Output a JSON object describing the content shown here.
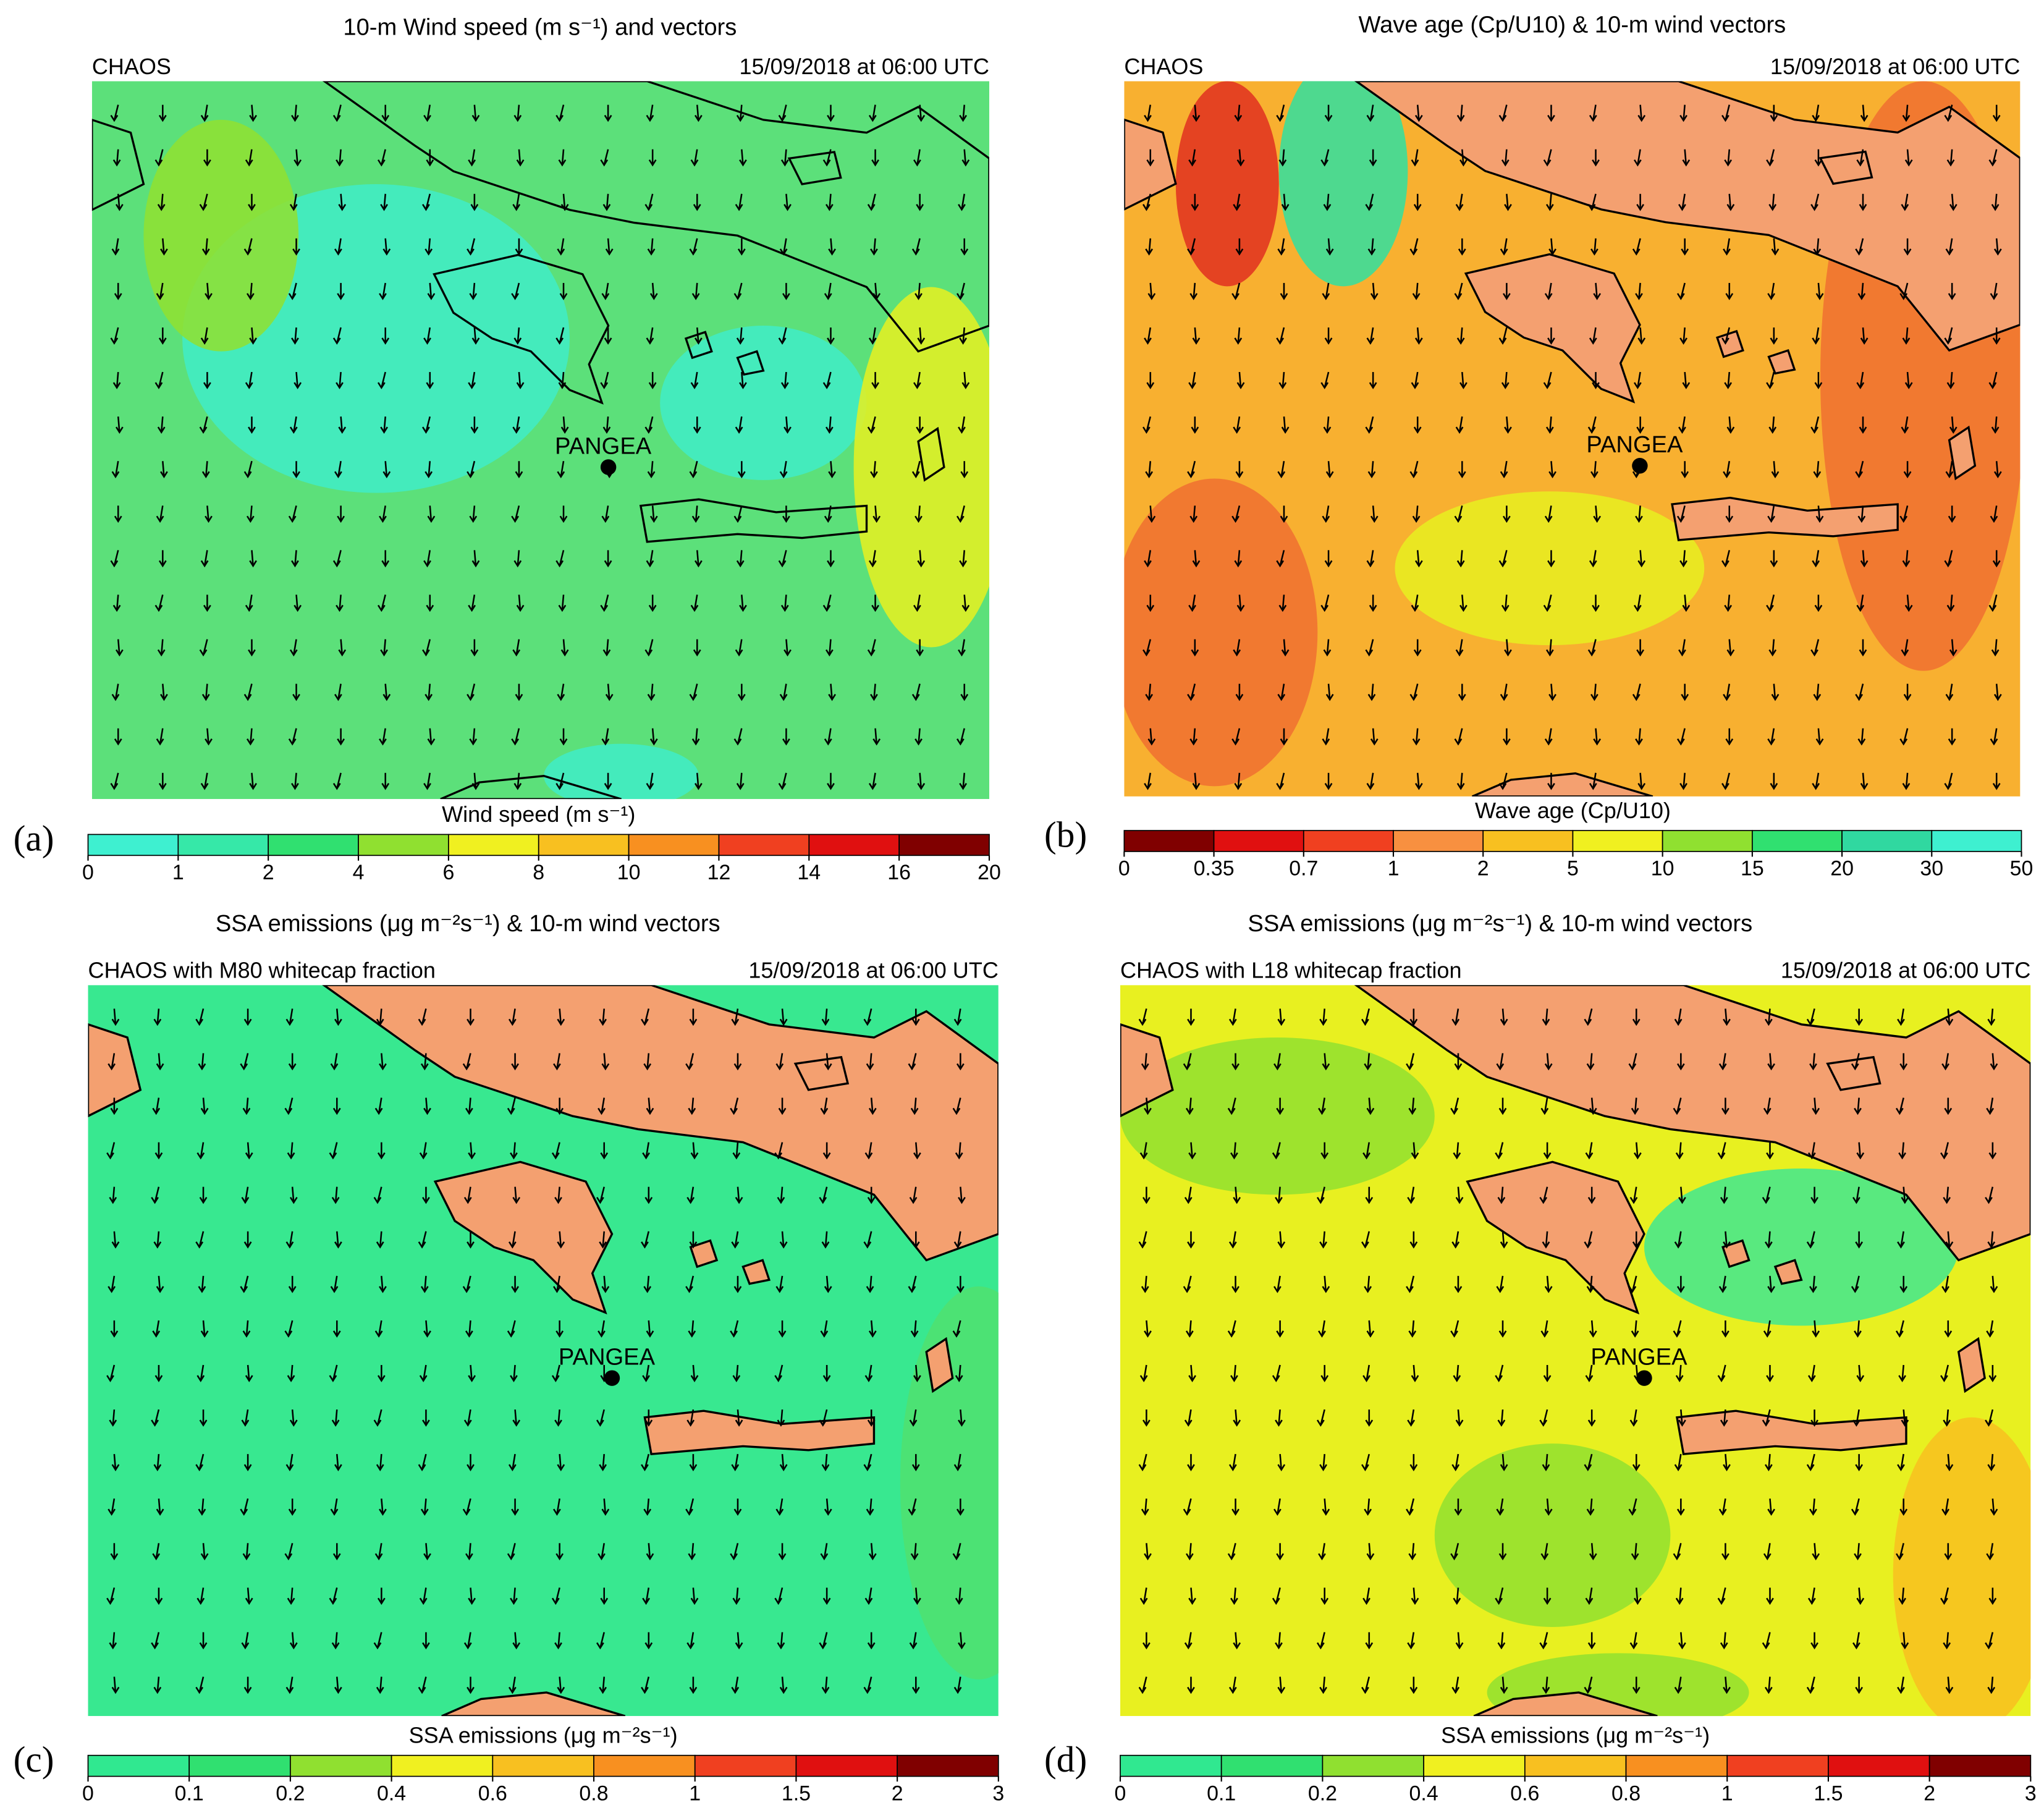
{
  "panels": [
    {
      "label": "(a)",
      "title": "10-m Wind speed (m s⁻¹) and vectors",
      "model": "CHAOS",
      "date": "15/09/2018 at 06:00 UTC",
      "site": "PANGEA",
      "colorbar": {
        "label": "Wind speed (m s⁻¹)",
        "ticks": [
          0,
          1,
          2,
          4,
          6,
          8,
          10,
          12,
          14,
          16,
          20
        ],
        "colors": [
          "#3ef0d0",
          "#36e8a8",
          "#30e070",
          "#90e030",
          "#f0f020",
          "#f8c020",
          "#f89020",
          "#f04020",
          "#e01010",
          "#800000"
        ]
      }
    },
    {
      "label": "(b)",
      "title": "Wave age (Cp/U10) & 10-m wind vectors",
      "model": "CHAOS",
      "date": "15/09/2018 at 06:00 UTC",
      "site": "PANGEA",
      "colorbar": {
        "label": "Wave age (Cp/U10)",
        "ticks": [
          0,
          0.35,
          0.7,
          1,
          2,
          5,
          10,
          15,
          20,
          30,
          50
        ],
        "colors": [
          "#800000",
          "#e01010",
          "#f04020",
          "#f89040",
          "#f8c020",
          "#f0f020",
          "#90e030",
          "#30e070",
          "#30d8a0",
          "#3ef0d0"
        ]
      }
    },
    {
      "label": "(c)",
      "title": "SSA emissions (μg m⁻²s⁻¹) & 10-m wind vectors",
      "model": "CHAOS with M80 whitecap fraction",
      "date": "15/09/2018 at 06:00 UTC",
      "site": "PANGEA",
      "colorbar": {
        "label": "SSA emissions (μg m⁻²s⁻¹)",
        "ticks": [
          0,
          0.1,
          0.2,
          0.4,
          0.6,
          0.8,
          1,
          1.5,
          2,
          3
        ],
        "colors": [
          "#30e890",
          "#30e070",
          "#90e030",
          "#f0f020",
          "#f8c020",
          "#f89020",
          "#f04020",
          "#e01010",
          "#800000"
        ]
      }
    },
    {
      "label": "(d)",
      "title": "SSA emissions (μg m⁻²s⁻¹) & 10-m wind vectors",
      "model": "CHAOS with L18 whitecap fraction",
      "date": "15/09/2018 at 06:00 UTC",
      "site": "PANGEA",
      "colorbar": {
        "label": "SSA emissions (μg m⁻²s⁻¹)",
        "ticks": [
          0,
          0.1,
          0.2,
          0.4,
          0.6,
          0.8,
          1,
          1.5,
          2,
          3
        ],
        "colors": [
          "#30e890",
          "#30e070",
          "#90e030",
          "#f0f020",
          "#f8c020",
          "#f89020",
          "#f04020",
          "#e01010",
          "#800000"
        ]
      }
    }
  ]
}
